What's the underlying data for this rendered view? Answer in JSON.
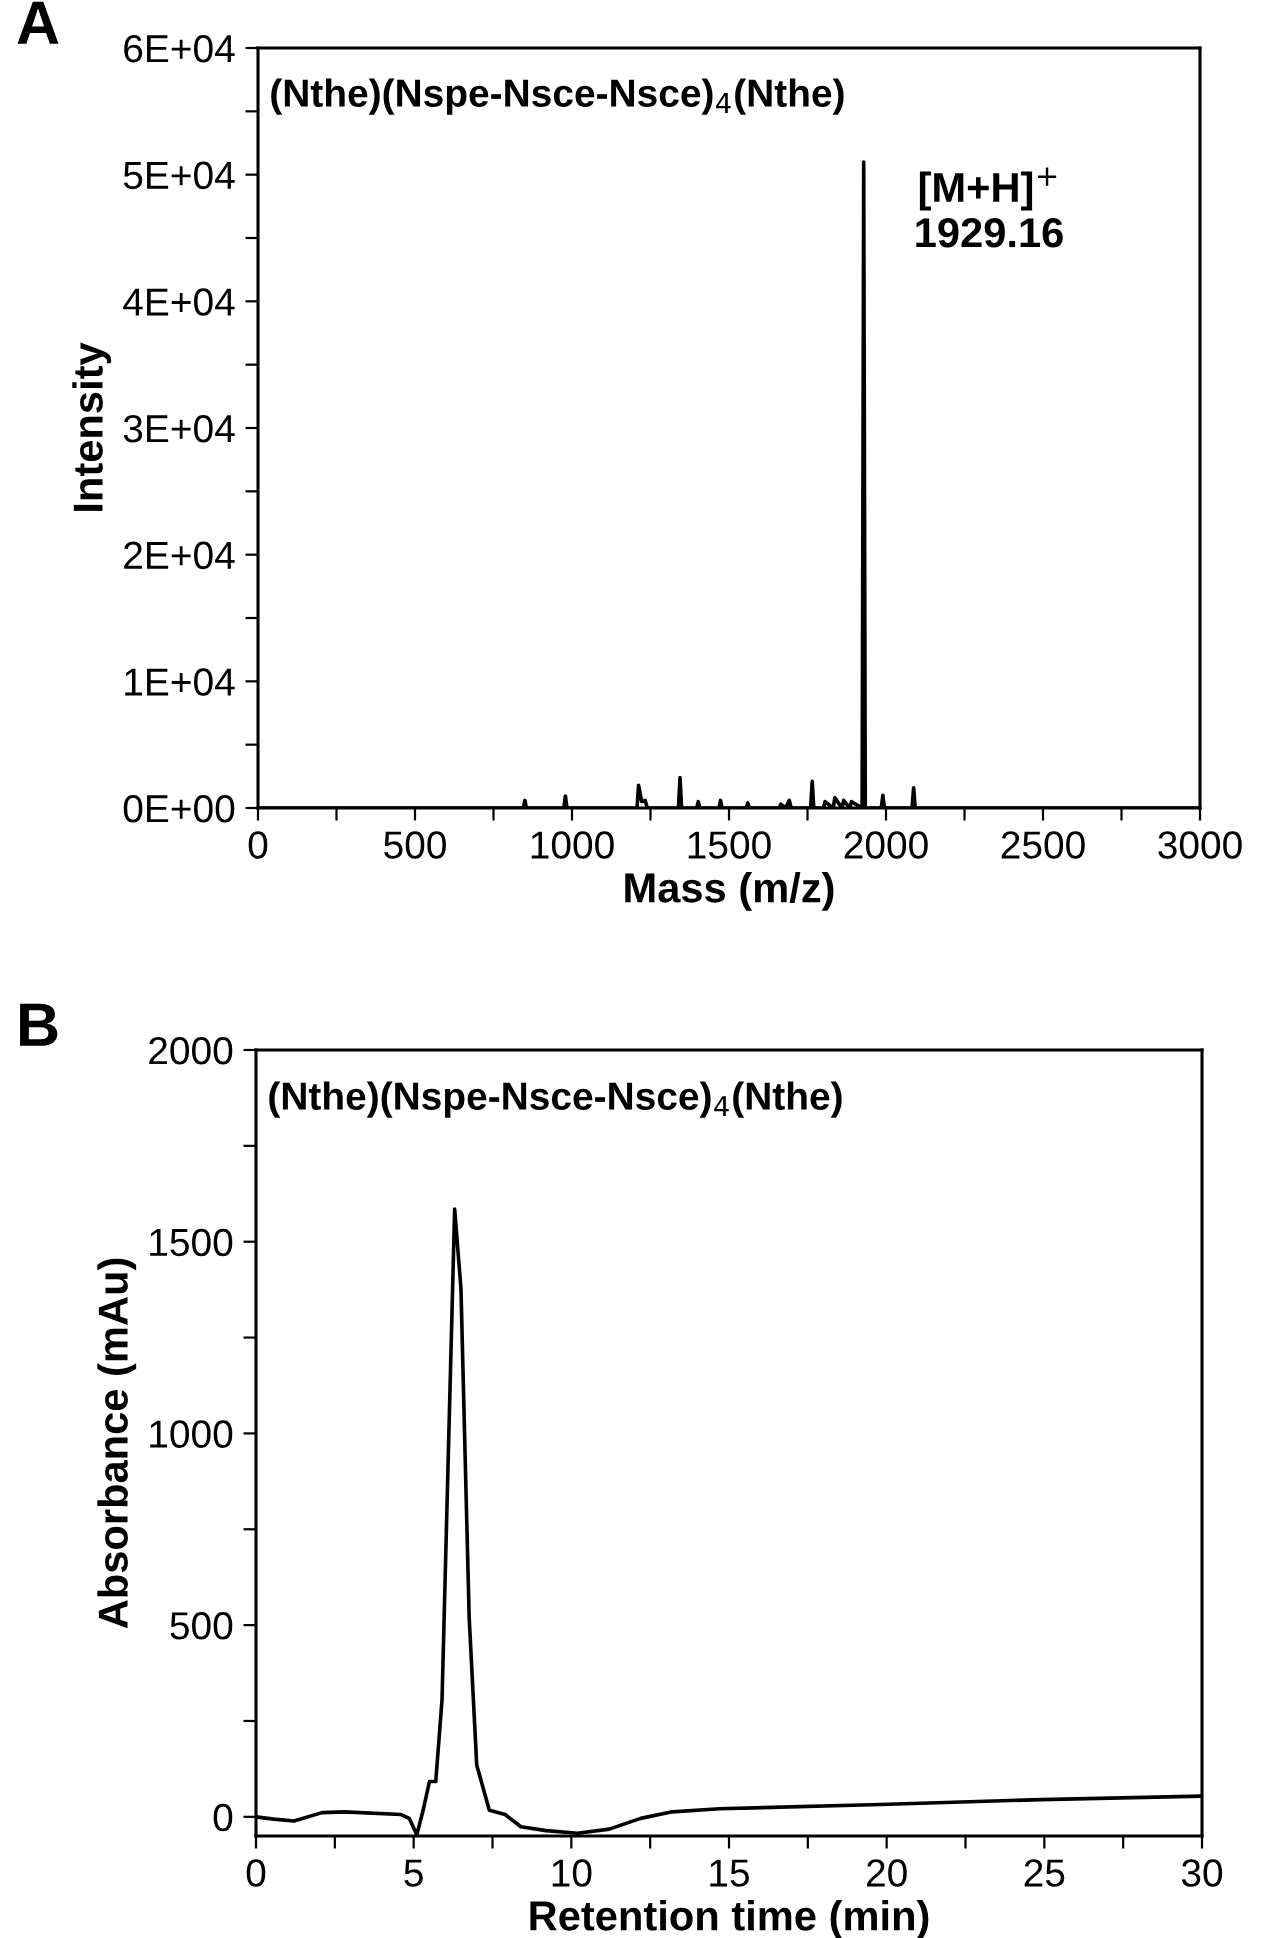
{
  "chart_data": [
    {
      "type": "line",
      "xlabel": "Mass (m/z)",
      "ylabel": "Intensity",
      "annotations": [
        "A",
        "(Nthe)(Nspe-Nsce-Nsce)$_{4}$(Nthe)",
        {
          "text": "[M+H]$^{+}$\n1929.16",
          "x": 1929,
          "y": 51000
        }
      ],
      "xlim": [
        0,
        3000
      ],
      "ylim": [
        0,
        60000
      ],
      "xticks": [
        0,
        {
          "value": 250,
          "label": null
        },
        500,
        {
          "value": 750,
          "label": null
        },
        1000,
        {
          "value": 1250,
          "label": null
        },
        1500,
        {
          "value": 1750,
          "label": null
        },
        2000,
        {
          "value": 2250,
          "label": null
        },
        2500,
        {
          "value": 2750,
          "label": null
        },
        3000
      ],
      "yticks": [
        {
          "value": 0,
          "label": "0E+00"
        },
        {
          "value": 5000,
          "label": null
        },
        {
          "value": 10000,
          "label": "1E+04"
        },
        {
          "value": 15000,
          "label": null
        },
        {
          "value": 20000,
          "label": "2E+04"
        },
        {
          "value": 25000,
          "label": null
        },
        {
          "value": 30000,
          "label": "3E+04"
        },
        {
          "value": 35000,
          "label": null
        },
        {
          "value": 40000,
          "label": "4E+04"
        },
        {
          "value": 45000,
          "label": null
        },
        {
          "value": 50000,
          "label": "5E+04"
        },
        {
          "value": 55000,
          "label": null
        },
        {
          "value": 60000,
          "label": "6E+04"
        }
      ],
      "grid": false,
      "legend": false,
      "series": [
        {
          "color": "#000000",
          "x": [
            0,
            845,
            850,
            855,
            974,
            979,
            984,
            1207,
            1212,
            1222,
            1233,
            1240,
            1339,
            1344,
            1349,
            1397,
            1402,
            1407,
            1468,
            1473,
            1478,
            1555,
            1560,
            1565,
            1660,
            1665,
            1680,
            1692,
            1698,
            1760,
            1765,
            1770,
            1801,
            1806,
            1832,
            1837,
            1860,
            1865,
            1885,
            1890,
            1924,
            1929,
            1934,
            1985,
            1990,
            1995,
            2083,
            2088,
            2093,
            3000
          ],
          "values": [
            0,
            0,
            600,
            0,
            0,
            950,
            0,
            0,
            1800,
            500,
            600,
            0,
            0,
            2400,
            0,
            0,
            500,
            0,
            0,
            600,
            0,
            0,
            400,
            0,
            0,
            300,
            0,
            600,
            0,
            0,
            2100,
            0,
            0,
            500,
            0,
            800,
            0,
            600,
            0,
            500,
            0,
            51000,
            0,
            0,
            1000,
            0,
            0,
            1600,
            0,
            0
          ]
        }
      ]
    },
    {
      "type": "line",
      "xlabel": "Retention time (min)",
      "ylabel": "Absorbance (mAu)",
      "annotations": [
        "B",
        "(Nthe)(Nspe-Nsce-Nsce)$_{4}$(Nthe)"
      ],
      "xlim": [
        0,
        30
      ],
      "ylim": [
        -50,
        2000
      ],
      "xticks": [
        0,
        {
          "value": 2.5,
          "label": null
        },
        5,
        {
          "value": 7.5,
          "label": null
        },
        10,
        {
          "value": 12.5,
          "label": null
        },
        15,
        {
          "value": 17.5,
          "label": null
        },
        20,
        {
          "value": 22.5,
          "label": null
        },
        25,
        {
          "value": 27.5,
          "label": null
        },
        30
      ],
      "yticks": [
        0,
        {
          "value": 250,
          "label": null
        },
        500,
        {
          "value": 750,
          "label": null
        },
        1000,
        {
          "value": 1250,
          "label": null
        },
        1500,
        {
          "value": 1750,
          "label": null
        },
        2000
      ],
      "grid": false,
      "legend": false,
      "series": [
        {
          "color": "#000000",
          "x": [
            0,
            0.56,
            1.2,
            2.1,
            2.8,
            4.6,
            4.86,
            5.1,
            5.3,
            5.5,
            5.7,
            5.9,
            6.1,
            6.3,
            6.5,
            6.76,
            7.0,
            7.4,
            7.9,
            8.4,
            9.2,
            10.2,
            11.2,
            12.2,
            13.2,
            14.7,
            19.8,
            24.9,
            30
          ],
          "values": [
            0,
            -6,
            -11,
            11,
            13,
            6,
            -4,
            -47,
            17,
            92,
            92,
            306,
            949,
            1585,
            1377,
            520,
            135,
            17,
            6,
            -26,
            -36,
            -43,
            -32,
            -4,
            13,
            21,
            32,
            45,
            54
          ]
        }
      ]
    }
  ]
}
